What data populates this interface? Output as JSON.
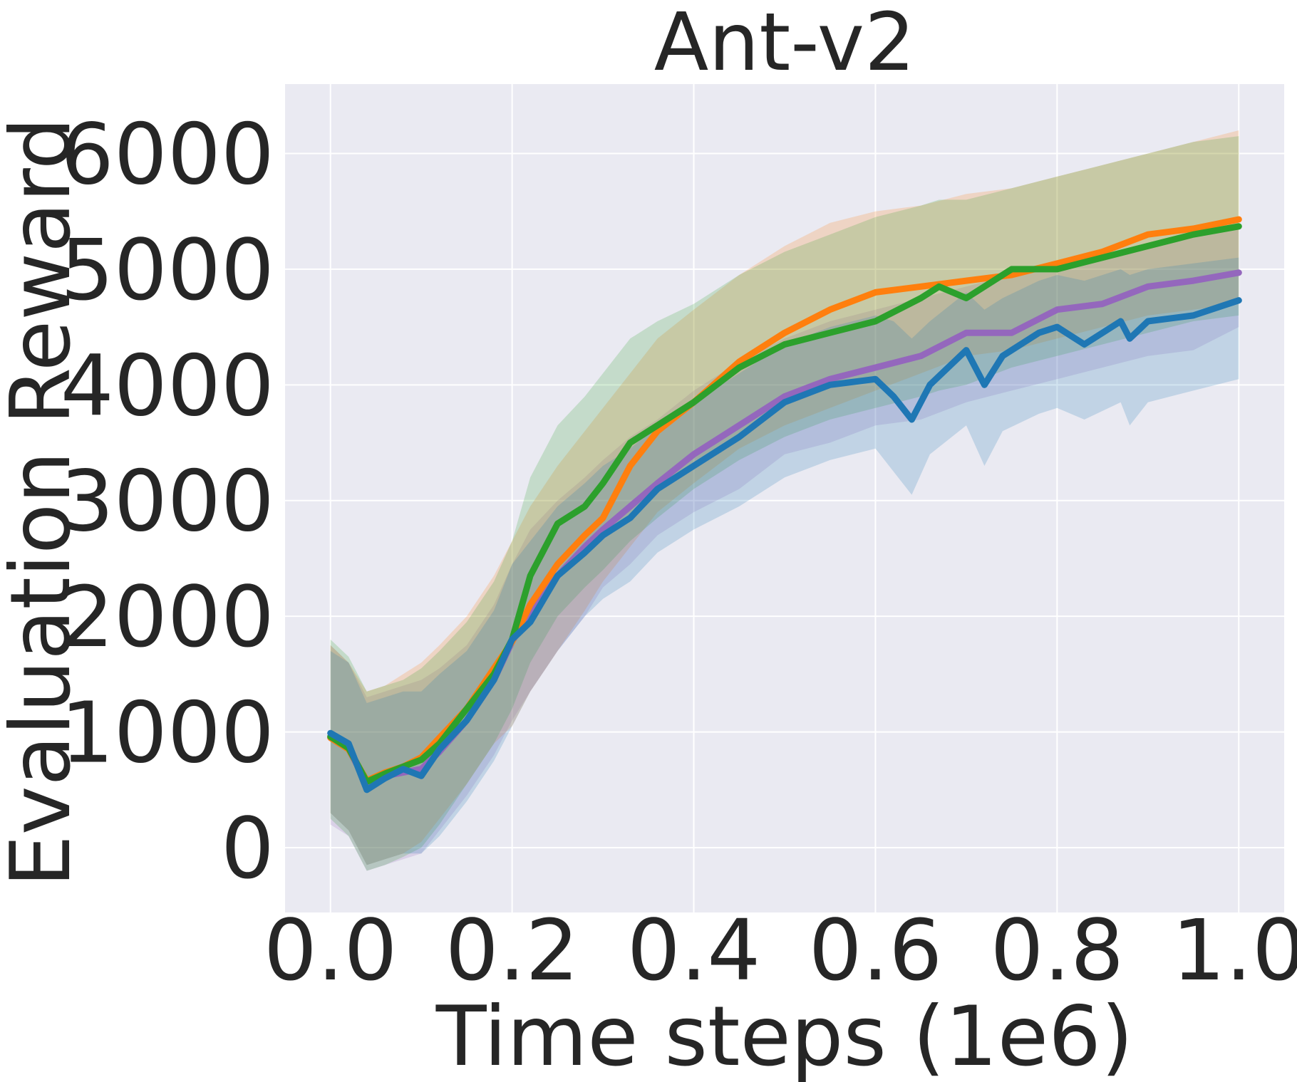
{
  "chart_data": {
    "type": "line",
    "title": "Ant-v2",
    "xlabel": "Time steps (1e6)",
    "ylabel": "Evaluation Reward",
    "xlim": [
      -0.05,
      1.05
    ],
    "ylim": [
      -560,
      6600
    ],
    "xticks": [
      0.0,
      0.2,
      0.4,
      0.6,
      0.8,
      1.0
    ],
    "xtick_labels": [
      "0.0",
      "0.2",
      "0.4",
      "0.6",
      "0.8",
      "1.0"
    ],
    "yticks": [
      0,
      1000,
      2000,
      3000,
      4000,
      5000,
      6000
    ],
    "ytick_labels": [
      "0",
      "1000",
      "2000",
      "3000",
      "4000",
      "5000",
      "6000"
    ],
    "grid": true,
    "background": "#eaeaf2",
    "legend": "none",
    "series": [
      {
        "color": "#9467bd",
        "x": [
          0.0,
          0.02,
          0.04,
          0.06,
          0.08,
          0.1,
          0.12,
          0.15,
          0.18,
          0.2,
          0.22,
          0.25,
          0.28,
          0.3,
          0.33,
          0.36,
          0.4,
          0.45,
          0.5,
          0.55,
          0.6,
          0.65,
          0.7,
          0.75,
          0.8,
          0.85,
          0.9,
          0.95,
          1.0
        ],
        "y": [
          950,
          850,
          560,
          620,
          650,
          680,
          830,
          1100,
          1450,
          1780,
          2050,
          2350,
          2600,
          2750,
          2950,
          3150,
          3400,
          3650,
          3900,
          4050,
          4150,
          4250,
          4450,
          4450,
          4650,
          4700,
          4850,
          4900,
          4970
        ],
        "lower": [
          200,
          100,
          -200,
          -150,
          -100,
          -50,
          150,
          450,
          800,
          1100,
          1350,
          1700,
          2000,
          2250,
          2450,
          2700,
          2900,
          3100,
          3400,
          3500,
          3650,
          3700,
          3850,
          3950,
          4050,
          4150,
          4250,
          4300,
          4500
        ],
        "upper": [
          1750,
          1600,
          1300,
          1350,
          1400,
          1450,
          1550,
          1750,
          2100,
          2450,
          2750,
          3000,
          3200,
          3350,
          3550,
          3700,
          3950,
          4200,
          4400,
          4550,
          4650,
          4750,
          4850,
          4950,
          5000,
          5100,
          5200,
          5300,
          5400
        ]
      },
      {
        "color": "#ff7f0e",
        "x": [
          0.0,
          0.02,
          0.04,
          0.06,
          0.08,
          0.1,
          0.12,
          0.15,
          0.18,
          0.2,
          0.22,
          0.25,
          0.28,
          0.3,
          0.33,
          0.36,
          0.4,
          0.45,
          0.5,
          0.55,
          0.6,
          0.65,
          0.7,
          0.75,
          0.8,
          0.85,
          0.9,
          0.95,
          1.0
        ],
        "y": [
          950,
          850,
          580,
          650,
          700,
          780,
          950,
          1200,
          1550,
          1780,
          2100,
          2450,
          2700,
          2850,
          3300,
          3600,
          3850,
          4200,
          4450,
          4650,
          4800,
          4850,
          4900,
          4950,
          5050,
          5150,
          5300,
          5350,
          5430
        ],
        "lower": [
          300,
          150,
          -150,
          -100,
          -50,
          50,
          250,
          550,
          900,
          1050,
          1350,
          1700,
          2050,
          2300,
          2600,
          2900,
          3150,
          3450,
          3650,
          3800,
          3950,
          4100,
          4250,
          4300,
          4400,
          4500,
          4600,
          4650,
          4700
        ],
        "upper": [
          1750,
          1600,
          1350,
          1400,
          1500,
          1600,
          1750,
          2000,
          2350,
          2650,
          2950,
          3300,
          3600,
          3800,
          4100,
          4400,
          4650,
          4950,
          5200,
          5400,
          5500,
          5550,
          5650,
          5700,
          5800,
          5900,
          6000,
          6100,
          6200
        ]
      },
      {
        "color": "#2ca02c",
        "x": [
          0.0,
          0.02,
          0.04,
          0.06,
          0.08,
          0.1,
          0.12,
          0.15,
          0.18,
          0.2,
          0.22,
          0.25,
          0.28,
          0.3,
          0.33,
          0.36,
          0.4,
          0.45,
          0.5,
          0.55,
          0.6,
          0.65,
          0.67,
          0.7,
          0.75,
          0.8,
          0.85,
          0.9,
          0.95,
          1.0
        ],
        "y": [
          960,
          860,
          570,
          640,
          700,
          760,
          900,
          1200,
          1500,
          1800,
          2350,
          2800,
          2950,
          3150,
          3500,
          3650,
          3850,
          4150,
          4350,
          4450,
          4550,
          4750,
          4850,
          4750,
          5000,
          5000,
          5100,
          5200,
          5300,
          5370
        ],
        "lower": [
          250,
          100,
          -200,
          -150,
          -80,
          0,
          200,
          550,
          900,
          1200,
          1600,
          2000,
          2250,
          2400,
          2650,
          2850,
          3100,
          3350,
          3550,
          3700,
          3800,
          3900,
          3950,
          4000,
          4150,
          4250,
          4350,
          4450,
          4550,
          4600
        ],
        "upper": [
          1800,
          1650,
          1350,
          1400,
          1450,
          1550,
          1700,
          1950,
          2300,
          2650,
          3200,
          3650,
          3900,
          4100,
          4400,
          4550,
          4700,
          4950,
          5150,
          5300,
          5450,
          5550,
          5600,
          5600,
          5700,
          5800,
          5900,
          6000,
          6100,
          6150
        ]
      },
      {
        "color": "#1f77b4",
        "x": [
          0.0,
          0.02,
          0.04,
          0.06,
          0.08,
          0.1,
          0.12,
          0.15,
          0.18,
          0.2,
          0.22,
          0.25,
          0.28,
          0.3,
          0.33,
          0.36,
          0.4,
          0.45,
          0.5,
          0.55,
          0.6,
          0.62,
          0.64,
          0.66,
          0.7,
          0.72,
          0.74,
          0.78,
          0.8,
          0.83,
          0.87,
          0.88,
          0.9,
          0.95,
          1.0
        ],
        "y": [
          990,
          900,
          500,
          600,
          680,
          620,
          850,
          1100,
          1450,
          1800,
          1950,
          2350,
          2550,
          2700,
          2850,
          3100,
          3300,
          3550,
          3850,
          4000,
          4050,
          3900,
          3700,
          4000,
          4300,
          4000,
          4250,
          4450,
          4500,
          4350,
          4550,
          4400,
          4550,
          4600,
          4730
        ],
        "lower": [
          300,
          150,
          -150,
          -100,
          -50,
          -50,
          100,
          400,
          750,
          1050,
          1350,
          1700,
          2000,
          2150,
          2300,
          2550,
          2750,
          2950,
          3200,
          3350,
          3450,
          3250,
          3050,
          3400,
          3650,
          3300,
          3600,
          3750,
          3800,
          3700,
          3850,
          3650,
          3850,
          3950,
          4050
        ],
        "upper": [
          1700,
          1600,
          1250,
          1300,
          1350,
          1350,
          1500,
          1700,
          2050,
          2450,
          2650,
          2950,
          3150,
          3300,
          3450,
          3650,
          3850,
          4100,
          4350,
          4500,
          4600,
          4550,
          4400,
          4550,
          4800,
          4650,
          4750,
          4900,
          4950,
          4900,
          5000,
          4950,
          5000,
          5050,
          5100
        ]
      }
    ]
  }
}
